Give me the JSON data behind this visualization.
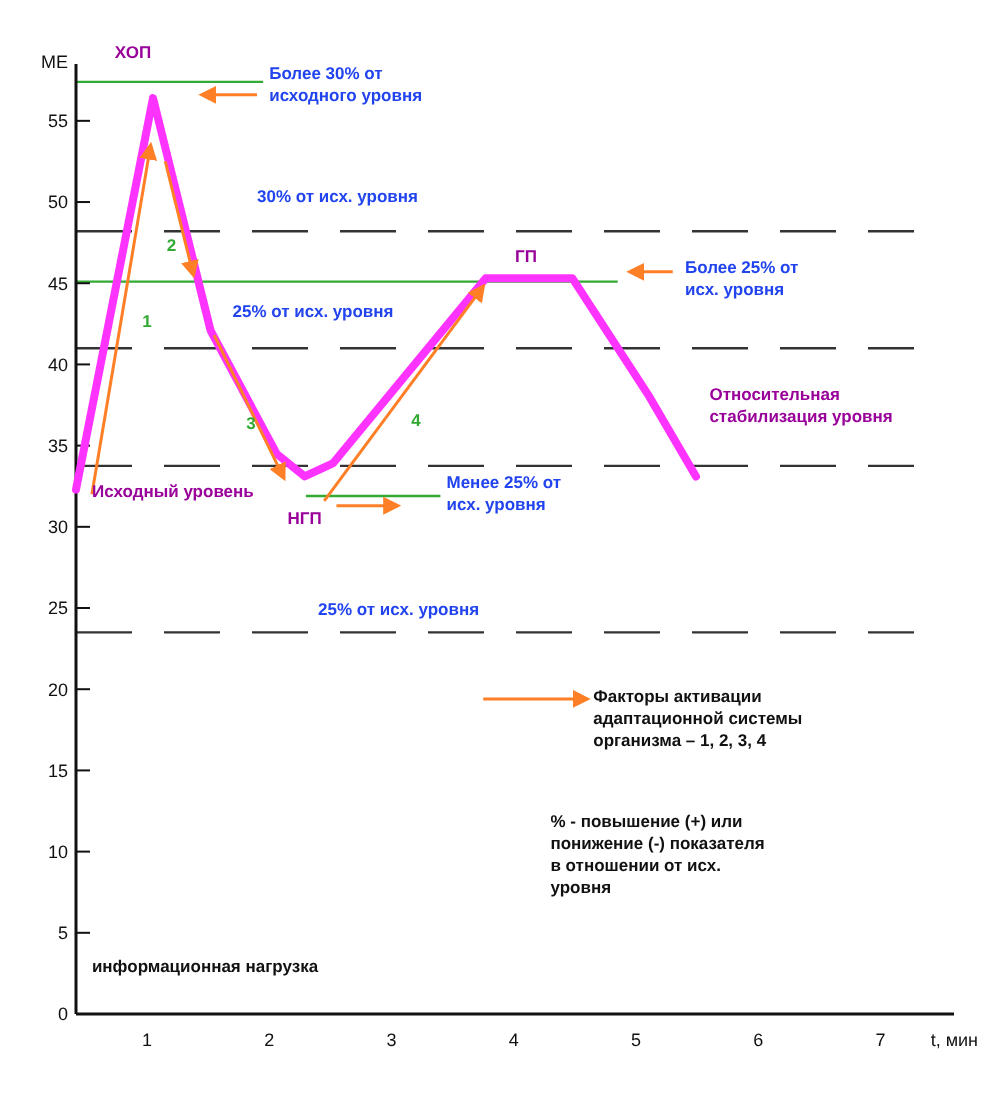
{
  "chart_data": {
    "type": "line",
    "xlabel": "t, мин",
    "ylabel": "МЕ",
    "x": [
      0.42,
      1.05,
      1.52,
      2.06,
      2.29,
      2.52,
      3.77,
      4.48,
      5.11,
      5.49
    ],
    "series": [
      {
        "color": "#ff33ff",
        "values": [
          32.3,
          56.4,
          42.1,
          34.5,
          33.1,
          33.9,
          45.3,
          45.3,
          38.0,
          33.1
        ]
      }
    ],
    "xlim": [
      0.42,
      7.6
    ],
    "ylim": [
      0,
      58.5
    ],
    "xticks": [
      1,
      2,
      3,
      4,
      5,
      6,
      7
    ],
    "yticks": [
      0,
      5,
      10,
      15,
      20,
      25,
      30,
      35,
      40,
      45,
      50,
      55
    ],
    "ref_lines": [
      {
        "axis": "y",
        "value": 57.4,
        "label": "Более 30% от исходного уровня",
        "color": "#33aa33"
      },
      {
        "axis": "y",
        "value": 48.2,
        "label": "30% от исх. уровня",
        "color": "#333333",
        "line_style": "dashed"
      },
      {
        "axis": "y",
        "value": 45.1,
        "label": "Более 25% от исх. уровня",
        "color": "#33aa33"
      },
      {
        "axis": "y",
        "value": 41.0,
        "label": "25% от исх. уровня",
        "color": "#333333",
        "line_style": "dashed"
      },
      {
        "axis": "y",
        "value": 33.75,
        "color": "#333333",
        "line_style": "dashed"
      },
      {
        "axis": "y",
        "value": 31.9,
        "label": "Менее 25% от исх. уровня",
        "color": "#33aa33"
      },
      {
        "axis": "y",
        "value": 23.5,
        "label": "25% от исх. уровня",
        "color": "#333333",
        "line_style": "dashed"
      }
    ],
    "annotations": [
      {
        "text": "ХОП",
        "x": 1.05,
        "y": 56.4
      },
      {
        "text": "ГП",
        "x": 4.1,
        "y": 45.3
      },
      {
        "text": "НГП",
        "x": 2.29,
        "y": 33.1
      },
      {
        "text": "Исходный уровень",
        "x": 0.42,
        "y": 32.3
      },
      "Относительная стабилизация уровня",
      "1",
      "2",
      "3",
      "4",
      "Факторы активации адаптационной системы организма – 1, 2, 3, 4",
      "% - повышение (+) или понижение (-) показателя в отношении от исх. уровня",
      "информационная нагрузка"
    ]
  }
}
